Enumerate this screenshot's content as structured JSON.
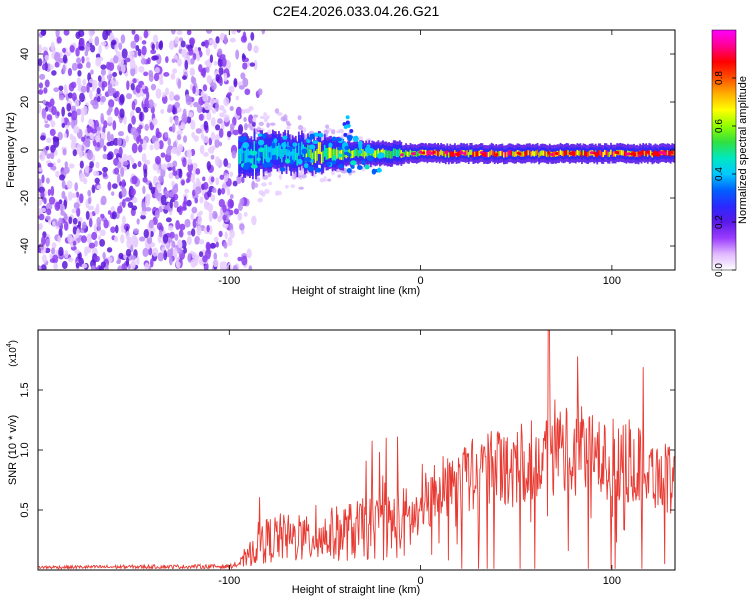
{
  "title": "C2E4.2026.033.04.26.G21",
  "colors": {
    "snr_line": "#e83a32",
    "axis": "#000000",
    "scatter": "#7a2be0",
    "colorbar": [
      "#ffffff",
      "#e0b8ff",
      "#9a3cff",
      "#5a1ae8",
      "#2a2aff",
      "#0060ff",
      "#00c8ff",
      "#00e8c0",
      "#30e040",
      "#90ff00",
      "#ffff00",
      "#ffb000",
      "#ff5000",
      "#ff0000",
      "#ff0090",
      "#ff00ff"
    ]
  },
  "chart_data": [
    {
      "type": "heatmap",
      "name": "spectrogram",
      "xlabel": "Height of straight line (km)",
      "ylabel": "Frequency (Hz)",
      "xlim": [
        -200,
        133
      ],
      "ylim": [
        -50,
        50
      ],
      "xticks": [
        {
          "value": -100,
          "label": "-100"
        },
        {
          "value": 0,
          "label": "0"
        },
        {
          "value": 100,
          "label": "100"
        }
      ],
      "yticks": [
        {
          "value": -40,
          "label": "-40"
        },
        {
          "value": -20,
          "label": "-20"
        },
        {
          "value": 0,
          "label": "0"
        },
        {
          "value": 20,
          "label": "20"
        },
        {
          "value": 40,
          "label": "40"
        }
      ],
      "colorbar": {
        "label": "Normalized spectral amplitude",
        "range": [
          0,
          1
        ],
        "ticks": [
          {
            "value": 0.0,
            "label": "0.0"
          },
          {
            "value": 0.2,
            "label": "0.2"
          },
          {
            "value": 0.4,
            "label": "0.4"
          },
          {
            "value": 0.6,
            "label": "0.6"
          },
          {
            "value": 0.8,
            "label": "0.8"
          }
        ]
      },
      "noise_region_x": [
        -200,
        -90
      ],
      "transition_x": [
        -90,
        -20
      ],
      "signal_band": {
        "x_start": -95,
        "x_end": 133,
        "center_freq": -1.5
      }
    },
    {
      "type": "line",
      "name": "snr",
      "xlabel": "Height of straight line (km)",
      "ylabel": "SNR (10 * v/v)",
      "yscale_label": "(x10",
      "yscale_exp": "4",
      "xlim": [
        -200,
        133
      ],
      "ylim": [
        0,
        20000
      ],
      "xticks": [
        {
          "value": -100,
          "label": "-100"
        },
        {
          "value": 0,
          "label": "0"
        },
        {
          "value": 100,
          "label": "100"
        }
      ],
      "yticks": [
        {
          "value": 5000,
          "label": "0.5"
        },
        {
          "value": 10000,
          "label": "1.0"
        },
        {
          "value": 15000,
          "label": "1.5"
        }
      ],
      "envelope": [
        {
          "x": -200,
          "y": 300
        },
        {
          "x": -100,
          "y": 400
        },
        {
          "x": -92,
          "y": 800
        },
        {
          "x": -85,
          "y": 2500
        },
        {
          "x": -75,
          "y": 3000
        },
        {
          "x": -60,
          "y": 2800
        },
        {
          "x": -40,
          "y": 3500
        },
        {
          "x": -20,
          "y": 4000
        },
        {
          "x": -5,
          "y": 4500
        },
        {
          "x": 10,
          "y": 7500
        },
        {
          "x": 30,
          "y": 9000
        },
        {
          "x": 50,
          "y": 10000
        },
        {
          "x": 70,
          "y": 11000
        },
        {
          "x": 90,
          "y": 10500
        },
        {
          "x": 110,
          "y": 10000
        },
        {
          "x": 133,
          "y": 8000
        }
      ],
      "peak": {
        "x": 67,
        "y": 20000
      }
    }
  ]
}
